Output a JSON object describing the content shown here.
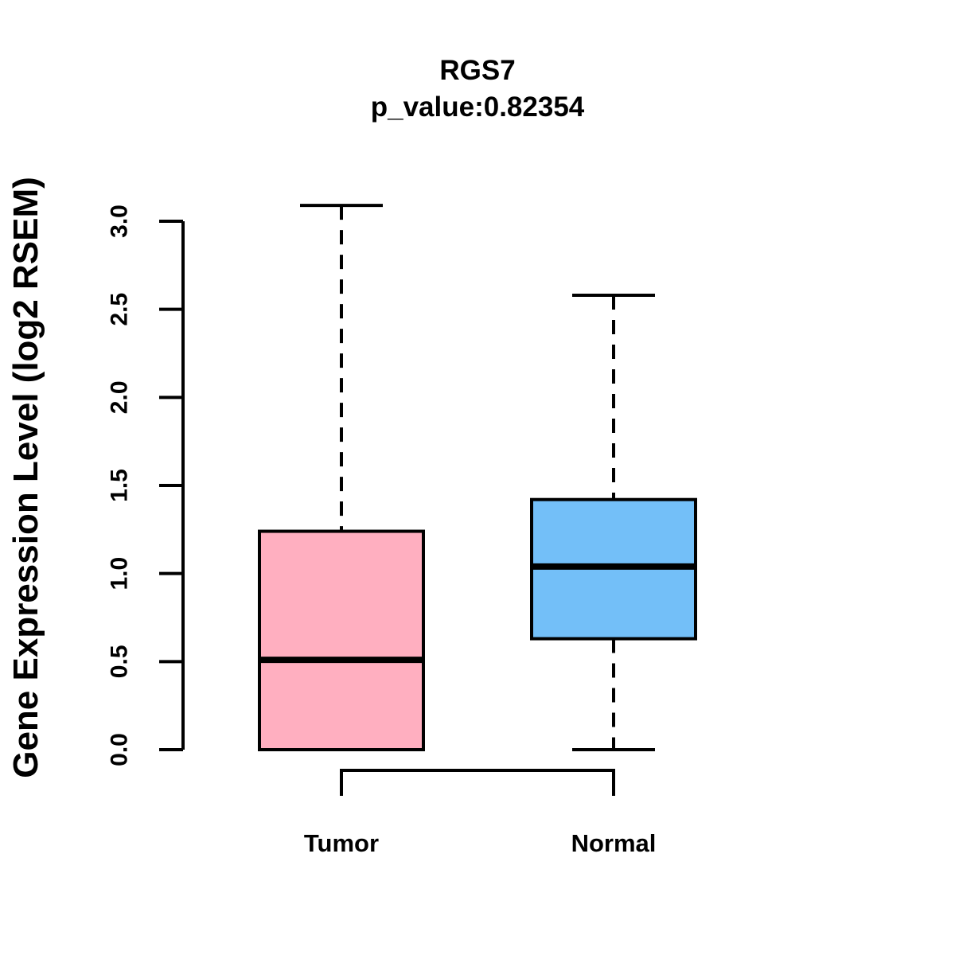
{
  "chart_data": {
    "type": "boxplot",
    "title": "RGS7",
    "subtitle": "p_value:0.82354",
    "xlabel": "",
    "ylabel": "Gene Expression Level (log2 RSEM)",
    "ylim": [
      0.0,
      3.0
    ],
    "yticks": [
      0.0,
      0.5,
      1.0,
      1.5,
      2.0,
      2.5,
      3.0
    ],
    "ytick_labels": [
      "0.0",
      "0.5",
      "1.0",
      "1.5",
      "2.0",
      "2.5",
      "3.0"
    ],
    "categories": [
      "Tumor",
      "Normal"
    ],
    "series": [
      {
        "name": "Tumor",
        "fill_color": "#FFAFC0",
        "stats": {
          "min": 0.0,
          "q1": 0.0,
          "median": 0.51,
          "q3": 1.24,
          "max": 3.09
        }
      },
      {
        "name": "Normal",
        "fill_color": "#73BFF8",
        "stats": {
          "min": 0.0,
          "q1": 0.63,
          "median": 1.04,
          "q3": 1.42,
          "max": 2.58
        }
      }
    ],
    "whisker_style": "dashed",
    "comparison_bracket": {
      "between": [
        "Tumor",
        "Normal"
      ]
    },
    "colors": {
      "stroke": "#000000",
      "background": "#FFFFFF"
    },
    "grid": false,
    "legend": false
  }
}
